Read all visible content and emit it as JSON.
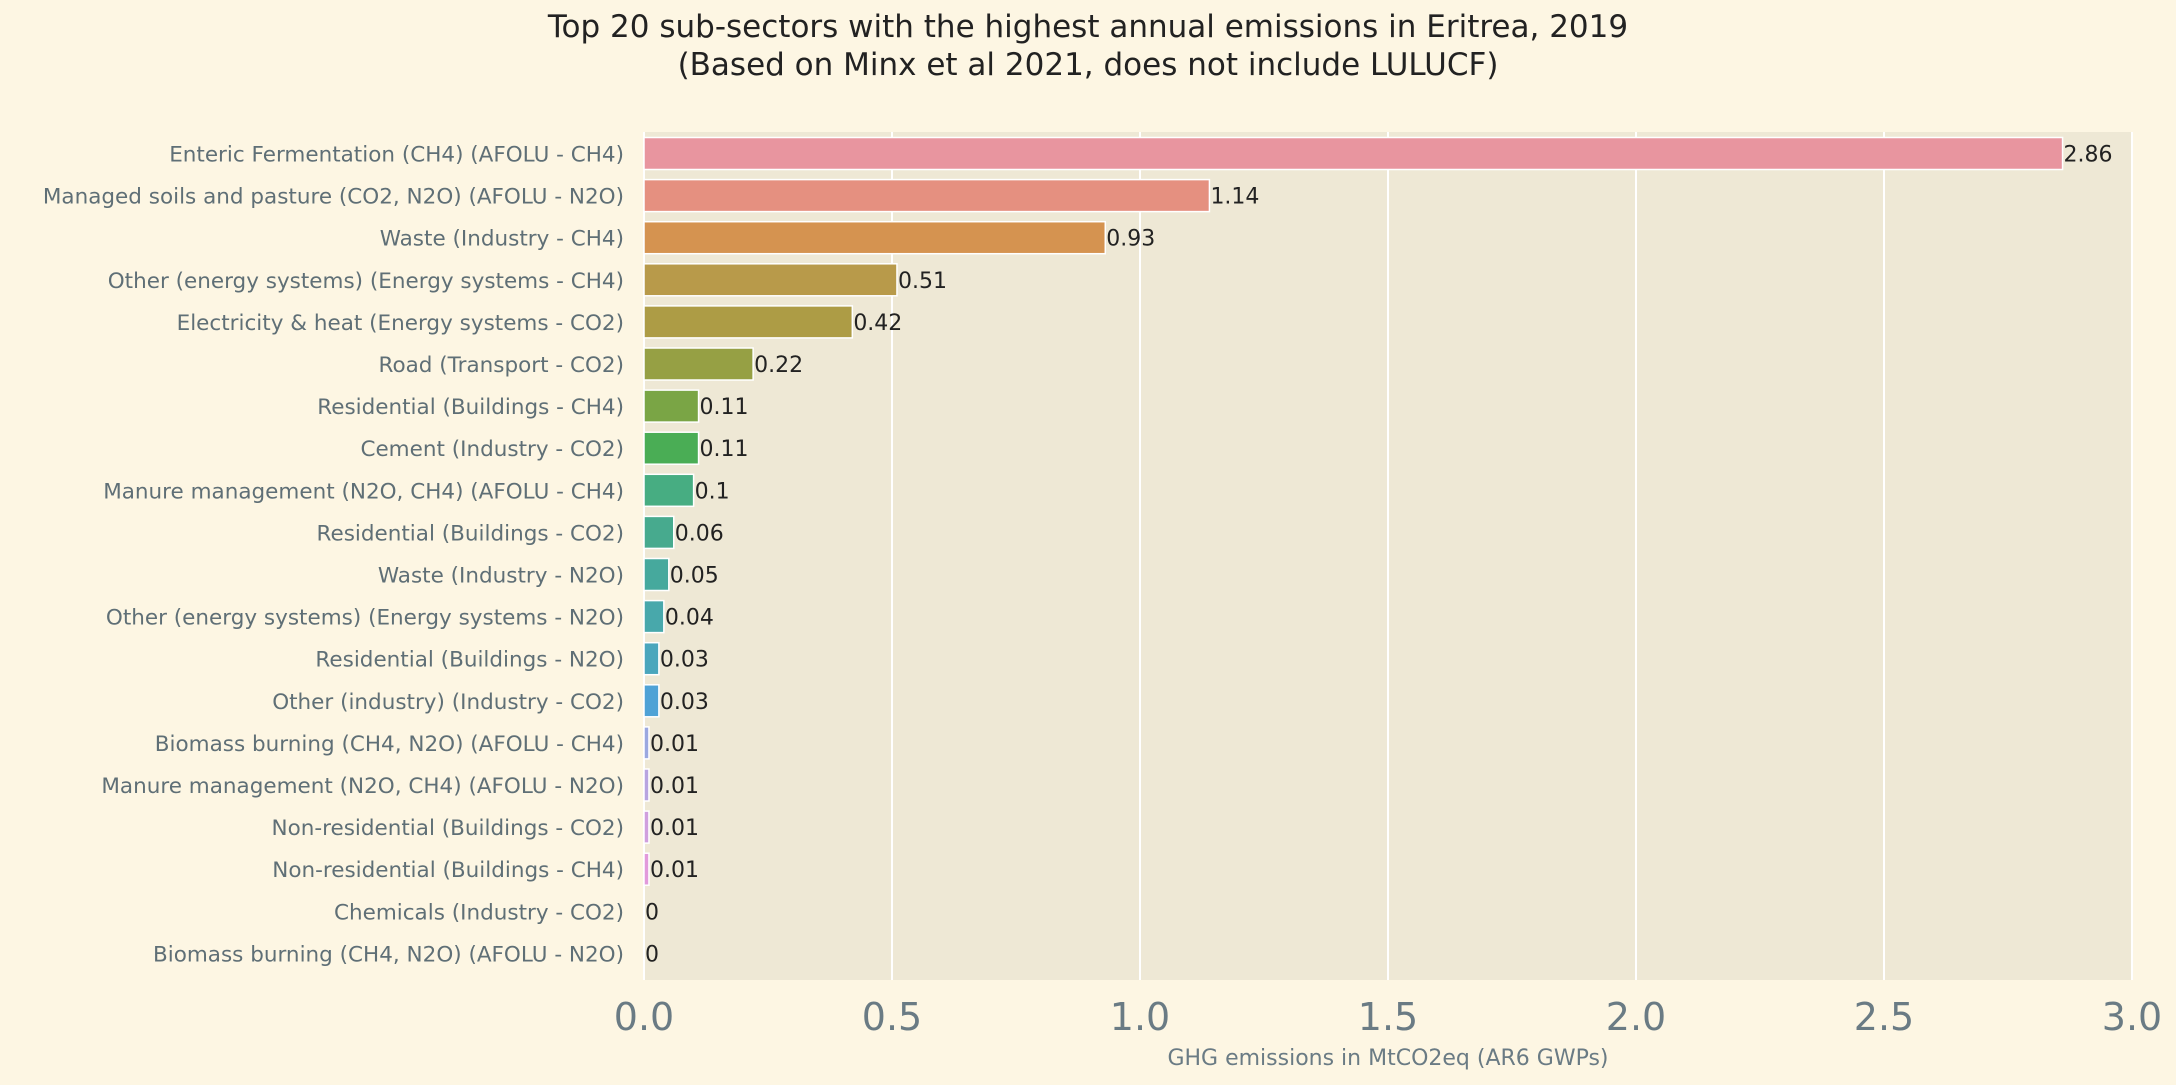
{
  "chart_data": {
    "type": "bar",
    "orientation": "horizontal",
    "title": "Top 20 sub-sectors with the highest annual emissions in Eritrea, 2019",
    "subtitle": "(Based on Minx et al 2021, does not include LULUCF)",
    "xlabel": "GHG emissions in MtCO2eq (AR6 GWPs)",
    "ylabel": "",
    "xlim": [
      0,
      3.0
    ],
    "xticks": [
      "0.0",
      "0.5",
      "1.0",
      "1.5",
      "2.0",
      "2.5",
      "3.0"
    ],
    "grid": true,
    "categories": [
      "Enteric Fermentation (CH4) (AFOLU - CH4)",
      "Managed soils and pasture (CO2, N2O) (AFOLU - N2O)",
      "Waste (Industry - CH4)",
      "Other (energy systems) (Energy systems - CH4)",
      "Electricity & heat (Energy systems - CO2)",
      "Road (Transport - CO2)",
      "Residential (Buildings - CH4)",
      "Cement (Industry - CO2)",
      "Manure management (N2O, CH4) (AFOLU - CH4)",
      "Residential (Buildings - CO2)",
      "Waste (Industry - N2O)",
      "Other (energy systems) (Energy systems - N2O)",
      "Residential (Buildings - N2O)",
      "Other (industry) (Industry - CO2)",
      "Biomass burning (CH4, N2O) (AFOLU - CH4)",
      "Manure management (N2O, CH4) (AFOLU - N2O)",
      "Non-residential (Buildings - CO2)",
      "Non-residential (Buildings - CH4)",
      "Chemicals (Industry - CO2)",
      "Biomass burning (CH4, N2O) (AFOLU - N2O)"
    ],
    "values": [
      2.86,
      1.14,
      0.93,
      0.51,
      0.42,
      0.22,
      0.11,
      0.11,
      0.1,
      0.06,
      0.05,
      0.04,
      0.03,
      0.03,
      0.01,
      0.01,
      0.01,
      0.01,
      0,
      0
    ],
    "value_labels": [
      "2.86",
      "1.14",
      "0.93",
      "0.51",
      "0.42",
      "0.22",
      "0.11",
      "0.11",
      "0.1",
      "0.06",
      "0.05",
      "0.04",
      "0.03",
      "0.03",
      "0.01",
      "0.01",
      "0.01",
      "0.01",
      "0",
      "0"
    ],
    "colors": [
      "#e8959f",
      "#e59080",
      "#d59350",
      "#b89a4a",
      "#ad9c45",
      "#96a044",
      "#7aa545",
      "#4aad55",
      "#47ad82",
      "#47aa8e",
      "#46a99d",
      "#48a8ab",
      "#4aa6bd",
      "#4fa2d6",
      "#9ba8e0",
      "#b8a4e0",
      "#d09fde",
      "#e29adb",
      "#e797c8",
      "#e895b4"
    ]
  },
  "style": {
    "background": "#fdf6e3",
    "plot_background": "#eee8d5",
    "grid_color": "#ffffff",
    "bar_edge": "#ffffff"
  }
}
